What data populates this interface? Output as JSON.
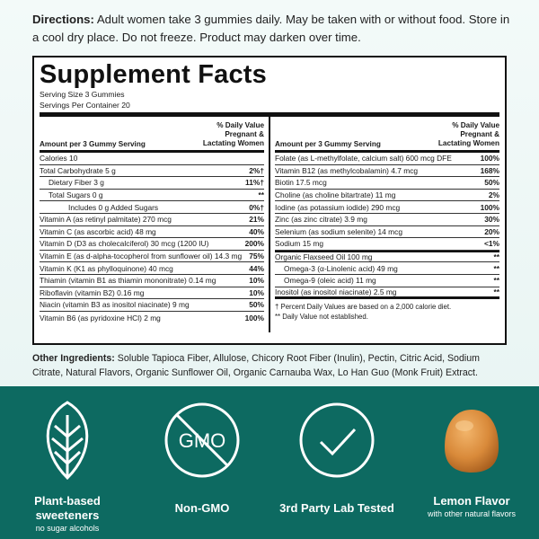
{
  "directions": {
    "label": "Directions:",
    "text": " Adult women take 3 gummies daily. May be taken with or without food. Store in a cool dry place. Do not freeze. Product may darken over time."
  },
  "facts": {
    "title": "Supplement Facts",
    "serving_size": "Serving Size 3 Gummies",
    "servings_per": "Servings Per Container 20",
    "left": {
      "header_amount": "Amount per 3 Gummy Serving",
      "header_dv_1": "% Daily Value",
      "header_dv_2": "Pregnant &",
      "header_dv_3": "Lactating Women",
      "rows": [
        {
          "name": "Calories 10",
          "value": ""
        },
        {
          "name": "Total Carbohydrate 5 g",
          "value": "2%†"
        },
        {
          "name": "Dietary Fiber 3 g",
          "value": "11%†"
        },
        {
          "name": "Total Sugars 0 g",
          "value": "**"
        },
        {
          "name": "Includes 0 g Added Sugars",
          "value": "0%†"
        },
        {
          "name": "Vitamin A (as retinyl palmitate) 270 mcg",
          "value": "21%"
        },
        {
          "name": "Vitamin C (as ascorbic acid) 48 mg",
          "value": "40%"
        },
        {
          "name": "Vitamin D (D3 as cholecalciferol) 30 mcg (1200 IU)",
          "value": "200%"
        },
        {
          "name": "Vitamin E (as d-alpha-tocopherol from sunflower oil) 14.3 mg",
          "value": "75%"
        },
        {
          "name": "Vitamin K (K1 as phylloquinone) 40 mcg",
          "value": "44%"
        },
        {
          "name": "Thiamin (vitamin B1 as thiamin mononitrate) 0.14 mg",
          "value": "10%"
        },
        {
          "name": "Riboflavin (vitamin B2) 0.16 mg",
          "value": "10%"
        },
        {
          "name": "Niacin (vitamin B3 as inositol niacinate) 9 mg",
          "value": "50%"
        },
        {
          "name": "Vitamin B6 (as pyridoxine HCl) 2 mg",
          "value": "100%"
        }
      ]
    },
    "right": {
      "header_amount": "Amount per 3 Gummy Serving",
      "header_dv_1": "% Daily Value",
      "header_dv_2": "Pregnant &",
      "header_dv_3": "Lactating Women",
      "rows": [
        {
          "name": "Folate (as L-methylfolate, calcium salt) 600 mcg DFE",
          "value": "100%"
        },
        {
          "name": "Vitamin B12 (as methylcobalamin) 4.7 mcg",
          "value": "168%"
        },
        {
          "name": "Biotin 17.5 mcg",
          "value": "50%"
        },
        {
          "name": "Choline (as choline bitartrate) 11 mg",
          "value": "2%"
        },
        {
          "name": "Iodine (as potassium iodide) 290 mcg",
          "value": "100%"
        },
        {
          "name": "Zinc (as zinc citrate) 3.9 mg",
          "value": "30%"
        },
        {
          "name": "Selenium (as sodium selenite) 14 mcg",
          "value": "20%"
        },
        {
          "name": "Sodium 15 mg",
          "value": "<1%"
        },
        {
          "name": "Organic Flaxseed Oil 100 mg",
          "value": "**"
        },
        {
          "name": "Omega-3 (α-Linolenic acid) 49 mg",
          "value": "**"
        },
        {
          "name": "Omega-9 (oleic acid) 11 mg",
          "value": "**"
        },
        {
          "name": "Inositol (as inositol niacinate) 2.5 mg",
          "value": "**"
        }
      ],
      "footnote_1": "† Percent Daily Values are based on a 2,000 calorie diet.",
      "footnote_2": "** Daily Value not established."
    }
  },
  "other_ingredients": {
    "label": "Other Ingredients:",
    "text": " Soluble Tapioca Fiber, Allulose, Chicory Root Fiber (Inulin), Pectin, Citric Acid, Sodium Citrate, Natural Flavors, Organic Sunflower Oil, Organic Carnauba Wax, Lo Han Guo (Monk Fruit) Extract."
  },
  "features": [
    {
      "icon": "leaf-icon",
      "label_1": "Plant-based",
      "label_2": "sweeteners",
      "sub": "no sugar alcohols"
    },
    {
      "icon": "no-gmo-icon",
      "icon_text": "GMO",
      "label_1": "Non-GMO",
      "label_2": "",
      "sub": ""
    },
    {
      "icon": "checkmark-icon",
      "label_1": "3rd Party Lab Tested",
      "label_2": "",
      "sub": ""
    },
    {
      "icon": "gummy-icon",
      "label_1": "Lemon Flavor",
      "label_2": "",
      "sub": "with other natural flavors"
    }
  ],
  "colors": {
    "band": "#0d6a61",
    "panel_border": "#111111",
    "gummy": "#d98a3a"
  }
}
